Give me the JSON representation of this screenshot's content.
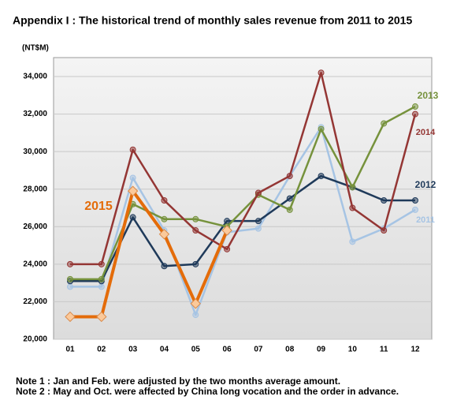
{
  "chart_data": {
    "type": "line",
    "title": "Appendix I : The historical  trend of monthly  sales revenue  from 2011 to 2015",
    "y_label": "(NT$M)",
    "categories": [
      "01",
      "02",
      "03",
      "04",
      "05",
      "06",
      "07",
      "08",
      "09",
      "10",
      "11",
      "12"
    ],
    "ylim": [
      20000,
      34000
    ],
    "yticks": [
      {
        "value": 20000,
        "label": "20,000"
      },
      {
        "value": 22000,
        "label": "22,000"
      },
      {
        "value": 24000,
        "label": "24,000"
      },
      {
        "value": 26000,
        "label": "26,000"
      },
      {
        "value": 28000,
        "label": "28,000"
      },
      {
        "value": 30000,
        "label": "30,000"
      },
      {
        "value": 32000,
        "label": "32,000"
      },
      {
        "value": 34000,
        "label": "34,000"
      }
    ],
    "grid": true,
    "series": [
      {
        "name": "2011",
        "color": "#a6c4e4",
        "values": [
          22800,
          22800,
          28600,
          25800,
          21300,
          25700,
          25900,
          28700,
          31300,
          25200,
          25900,
          26900
        ]
      },
      {
        "name": "2012",
        "color": "#1f3a5a",
        "values": [
          23100,
          23100,
          26500,
          23900,
          24000,
          26300,
          26300,
          27500,
          28700,
          28100,
          27400,
          27400
        ]
      },
      {
        "name": "2013",
        "color": "#76923c",
        "values": [
          23200,
          23200,
          27200,
          26400,
          26400,
          26000,
          27700,
          26900,
          31200,
          28100,
          31500,
          32400
        ]
      },
      {
        "name": "2014",
        "color": "#943634",
        "values": [
          24000,
          24000,
          30100,
          27400,
          25800,
          24800,
          27800,
          28700,
          34200,
          27000,
          25800,
          32000
        ]
      },
      {
        "name": "2015",
        "color": "#e46c0a",
        "values": [
          21200,
          21200,
          27900,
          25600,
          21900,
          25800,
          null,
          null,
          null,
          null,
          null,
          null
        ]
      }
    ],
    "notes": [
      "Note 1 : Jan and Feb. were adjusted by the two months average amount.",
      "Note 2 : May and Oct. were affected by China long vocation and the order in advance."
    ]
  }
}
